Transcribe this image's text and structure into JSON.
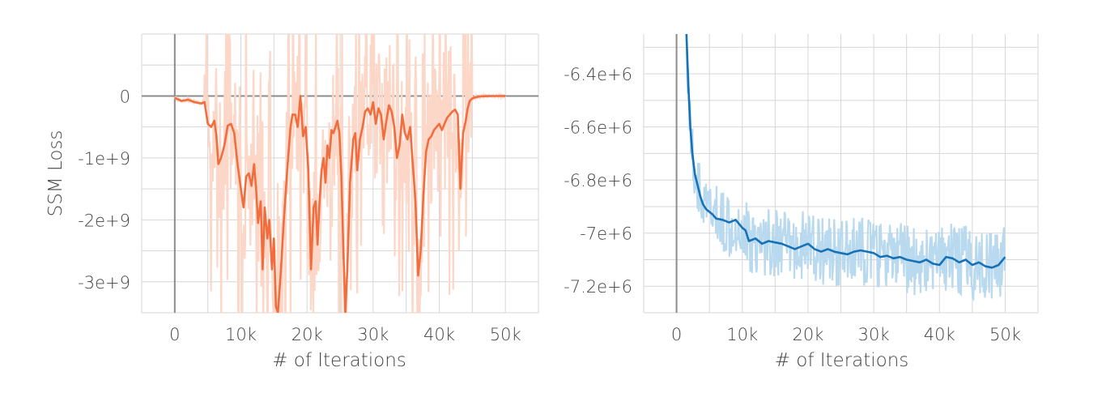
{
  "colors": {
    "left_main": "#f26d3d",
    "left_raw": "#fcd7c8",
    "right_main": "#1672b6",
    "right_raw": "#b9d9ef",
    "grid": "#d6d6d6",
    "zero_line": "#8c8c8c"
  },
  "chart_data": [
    {
      "type": "line",
      "title": "",
      "xlabel": "# of Iterations",
      "ylabel": "SSM Loss",
      "xlim": [
        -5000,
        55000
      ],
      "ylim": [
        -3500000000,
        1000000000
      ],
      "xticks": [
        0,
        10000,
        20000,
        30000,
        40000,
        50000
      ],
      "xtick_labels": [
        "0",
        "10k",
        "20k",
        "30k",
        "40k",
        "50k"
      ],
      "yticks": [
        0,
        -1000000000,
        -2000000000,
        -3000000000
      ],
      "ytick_labels": [
        "0",
        "-1e+9",
        "-2e+9",
        "-3e+9"
      ],
      "grid": true,
      "series": [
        {
          "role": "smoothed",
          "x": [
            0,
            1000,
            2000,
            3000,
            4000,
            4500,
            5000,
            5500,
            6000,
            6300,
            6600,
            7000,
            7500,
            8000,
            8500,
            9000,
            9500,
            10000,
            10400,
            10800,
            11200,
            11600,
            12000,
            12300,
            12600,
            13000,
            13300,
            13600,
            14000,
            14300,
            14700,
            15000,
            15300,
            15600,
            16000,
            16500,
            17000,
            17500,
            17800,
            18200,
            18600,
            19000,
            19400,
            19800,
            20200,
            20600,
            21000,
            21300,
            21600,
            21900,
            22200,
            22500,
            22800,
            23100,
            23400,
            23700,
            24000,
            24300,
            24600,
            24900,
            25200,
            25500,
            25800,
            26100,
            26500,
            27000,
            27300,
            27600,
            28000,
            28400,
            28800,
            29200,
            29600,
            30000,
            30400,
            30800,
            31200,
            31600,
            32000,
            32400,
            32800,
            33200,
            33600,
            34000,
            34400,
            34800,
            35200,
            35600,
            36000,
            36400,
            36800,
            37200,
            37600,
            38000,
            38400,
            38800,
            39200,
            39600,
            40000,
            40400,
            40800,
            41200,
            41600,
            42000,
            42400,
            42800,
            43200,
            43600,
            44000,
            44300,
            44600,
            45000,
            45500,
            46000,
            46500,
            47000,
            47500,
            48000,
            48500,
            49000,
            50000
          ],
          "y": [
            -30000000,
            -80000000,
            -60000000,
            -100000000,
            -120000000,
            -100000000,
            -450000000,
            -500000000,
            -400000000,
            -650000000,
            -1100000000,
            -1000000000,
            -800000000,
            -480000000,
            -450000000,
            -600000000,
            -1100000000,
            -1500000000,
            -1800000000,
            -1300000000,
            -1250000000,
            -1450000000,
            -1100000000,
            -1500000000,
            -2050000000,
            -1700000000,
            -2800000000,
            -1800000000,
            -2300000000,
            -2000000000,
            -2800000000,
            -2300000000,
            -3400000000,
            -3500000000,
            -2900000000,
            -2000000000,
            -1200000000,
            -500000000,
            -300000000,
            -300000000,
            -500000000,
            0,
            -650000000,
            -500000000,
            -1200000000,
            -2800000000,
            -1800000000,
            -1700000000,
            -2400000000,
            -1700000000,
            -1200000000,
            -1000000000,
            -1400000000,
            -800000000,
            -1000000000,
            -550000000,
            -600000000,
            -500000000,
            -400000000,
            -600000000,
            -1300000000,
            -2500000000,
            -3500000000,
            -2800000000,
            -1400000000,
            -700000000,
            -600000000,
            -1200000000,
            -700000000,
            -500000000,
            -250000000,
            -200000000,
            -300000000,
            -100000000,
            -450000000,
            -200000000,
            -300000000,
            -700000000,
            -400000000,
            -150000000,
            -250000000,
            -500000000,
            -1000000000,
            -800000000,
            -300000000,
            -600000000,
            -700000000,
            -500000000,
            -1100000000,
            -1700000000,
            -2900000000,
            -2500000000,
            -1600000000,
            -900000000,
            -700000000,
            -650000000,
            -550000000,
            -500000000,
            -450000000,
            -550000000,
            -450000000,
            -350000000,
            -300000000,
            -250000000,
            -220000000,
            -300000000,
            -1500000000,
            -600000000,
            -400000000,
            -200000000,
            -80000000,
            -40000000,
            -20000000,
            -10000000,
            -5000000,
            -3000000,
            -2000000,
            -1000000,
            -500000,
            -200000,
            0
          ]
        }
      ]
    },
    {
      "type": "line",
      "title": "",
      "xlabel": "# of Iterations",
      "ylabel": "",
      "xlim": [
        -5000,
        55000
      ],
      "ylim": [
        -7300000,
        -6250000
      ],
      "xticks": [
        0,
        10000,
        20000,
        30000,
        40000,
        50000
      ],
      "xtick_labels": [
        "0",
        "10k",
        "20k",
        "30k",
        "40k",
        "50k"
      ],
      "yticks": [
        -6400000,
        -6600000,
        -6800000,
        -7000000,
        -7200000
      ],
      "ytick_labels": [
        "-6.4e+6",
        "-6.6e+6",
        "-6.8e+6",
        "-7e+6",
        "-7.2e+6"
      ],
      "grid": true,
      "series": [
        {
          "role": "smoothed",
          "x": [
            1500,
            1800,
            2100,
            2400,
            2800,
            3200,
            3600,
            4000,
            4500,
            5000,
            5500,
            6000,
            7000,
            8000,
            9000,
            10000,
            10500,
            11000,
            12000,
            13000,
            14000,
            15000,
            16000,
            17000,
            18000,
            19000,
            20000,
            21000,
            22000,
            23000,
            24000,
            25000,
            26000,
            27000,
            28000,
            29000,
            30000,
            31000,
            32000,
            33000,
            34000,
            35000,
            36000,
            37000,
            38000,
            39000,
            40000,
            41000,
            42000,
            43000,
            44000,
            45000,
            46000,
            47000,
            48000,
            49000,
            50000
          ],
          "y": [
            -6250000,
            -6450000,
            -6600000,
            -6700000,
            -6780000,
            -6820000,
            -6860000,
            -6890000,
            -6910000,
            -6920000,
            -6930000,
            -6945000,
            -6950000,
            -6960000,
            -6950000,
            -6980000,
            -6990000,
            -7030000,
            -7020000,
            -7040000,
            -7030000,
            -7035000,
            -7040000,
            -7050000,
            -7060000,
            -7050000,
            -7040000,
            -7060000,
            -7070000,
            -7060000,
            -7070000,
            -7075000,
            -7080000,
            -7070000,
            -7065000,
            -7070000,
            -7075000,
            -7090000,
            -7085000,
            -7095000,
            -7090000,
            -7100000,
            -7105000,
            -7110000,
            -7100000,
            -7115000,
            -7120000,
            -7090000,
            -7095000,
            -7110000,
            -7100000,
            -7120000,
            -7110000,
            -7125000,
            -7130000,
            -7120000,
            -7090000
          ]
        }
      ]
    }
  ]
}
